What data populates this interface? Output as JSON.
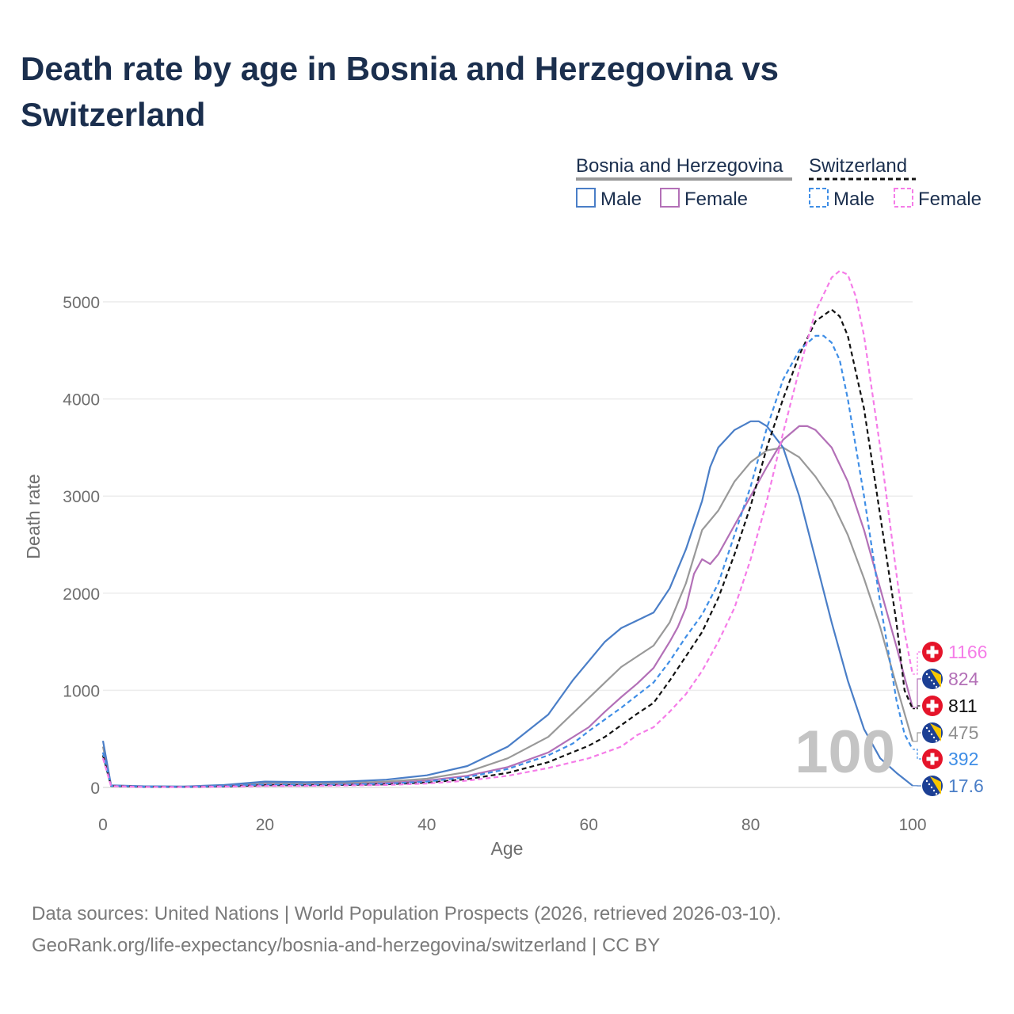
{
  "title": "Death rate by age in Bosnia and Herzegovina vs Switzerland",
  "source_line1": "Data sources: United Nations | World Population Prospects (2026, retrieved 2026-03-10).",
  "source_line2": "GeoRank.org/life-expectancy/bosnia-and-herzegovina/switzerland | CC BY",
  "legend": {
    "group1": "Bosnia and Herzegovina",
    "group2": "Switzerland",
    "male": "Male",
    "female": "Female"
  },
  "age_watermark": "100",
  "chart_data": {
    "type": "line",
    "title": "Death rate by age in Bosnia and Herzegovina vs Switzerland",
    "xlabel": "Age",
    "ylabel": "Death rate",
    "xlim": [
      0,
      100
    ],
    "ylim": [
      0,
      5000
    ],
    "xticks": [
      0,
      20,
      40,
      60,
      80,
      100
    ],
    "yticks": [
      0,
      1000,
      2000,
      3000,
      4000,
      5000
    ],
    "grid": true,
    "series": [
      {
        "name": "Bosnia and Herzegovina Total",
        "country": "Bosnia and Herzegovina",
        "sex": "Total",
        "color": "#999999",
        "dash": false,
        "end_value": "475",
        "points": [
          [
            0,
            420
          ],
          [
            1,
            20
          ],
          [
            5,
            10
          ],
          [
            10,
            8
          ],
          [
            15,
            20
          ],
          [
            20,
            45
          ],
          [
            25,
            40
          ],
          [
            30,
            45
          ],
          [
            35,
            60
          ],
          [
            40,
            90
          ],
          [
            45,
            160
          ],
          [
            50,
            300
          ],
          [
            55,
            520
          ],
          [
            60,
            920
          ],
          [
            62,
            1080
          ],
          [
            64,
            1240
          ],
          [
            66,
            1350
          ],
          [
            68,
            1460
          ],
          [
            70,
            1700
          ],
          [
            72,
            2100
          ],
          [
            74,
            2650
          ],
          [
            76,
            2850
          ],
          [
            78,
            3150
          ],
          [
            80,
            3350
          ],
          [
            82,
            3470
          ],
          [
            84,
            3500
          ],
          [
            86,
            3400
          ],
          [
            88,
            3200
          ],
          [
            90,
            2950
          ],
          [
            92,
            2600
          ],
          [
            94,
            2150
          ],
          [
            96,
            1650
          ],
          [
            98,
            1050
          ],
          [
            100,
            475
          ]
        ]
      },
      {
        "name": "Bosnia and Herzegovina Male",
        "country": "Bosnia and Herzegovina",
        "sex": "Male",
        "color": "#4a7ec7",
        "dash": false,
        "end_value": "17.6",
        "points": [
          [
            0,
            480
          ],
          [
            1,
            22
          ],
          [
            5,
            12
          ],
          [
            10,
            10
          ],
          [
            15,
            25
          ],
          [
            20,
            60
          ],
          [
            25,
            55
          ],
          [
            30,
            60
          ],
          [
            35,
            80
          ],
          [
            40,
            125
          ],
          [
            45,
            220
          ],
          [
            50,
            420
          ],
          [
            55,
            750
          ],
          [
            58,
            1100
          ],
          [
            60,
            1300
          ],
          [
            62,
            1500
          ],
          [
            64,
            1640
          ],
          [
            66,
            1720
          ],
          [
            68,
            1800
          ],
          [
            70,
            2050
          ],
          [
            72,
            2450
          ],
          [
            74,
            2950
          ],
          [
            75,
            3300
          ],
          [
            76,
            3500
          ],
          [
            78,
            3680
          ],
          [
            80,
            3770
          ],
          [
            81,
            3770
          ],
          [
            82,
            3720
          ],
          [
            84,
            3500
          ],
          [
            86,
            3000
          ],
          [
            88,
            2350
          ],
          [
            90,
            1700
          ],
          [
            92,
            1100
          ],
          [
            94,
            600
          ],
          [
            96,
            300
          ],
          [
            98,
            150
          ],
          [
            100,
            17.6
          ]
        ]
      },
      {
        "name": "Bosnia and Herzegovina Female",
        "country": "Bosnia and Herzegovina",
        "sex": "Female",
        "color": "#b370b7",
        "dash": false,
        "end_value": "824",
        "points": [
          [
            0,
            360
          ],
          [
            1,
            18
          ],
          [
            5,
            8
          ],
          [
            10,
            7
          ],
          [
            15,
            15
          ],
          [
            20,
            30
          ],
          [
            25,
            28
          ],
          [
            30,
            32
          ],
          [
            35,
            45
          ],
          [
            40,
            70
          ],
          [
            45,
            120
          ],
          [
            50,
            210
          ],
          [
            55,
            360
          ],
          [
            60,
            620
          ],
          [
            62,
            780
          ],
          [
            64,
            930
          ],
          [
            66,
            1070
          ],
          [
            68,
            1230
          ],
          [
            70,
            1500
          ],
          [
            71,
            1650
          ],
          [
            72,
            1850
          ],
          [
            73,
            2200
          ],
          [
            74,
            2350
          ],
          [
            75,
            2300
          ],
          [
            76,
            2400
          ],
          [
            78,
            2700
          ],
          [
            80,
            3000
          ],
          [
            82,
            3300
          ],
          [
            84,
            3580
          ],
          [
            86,
            3720
          ],
          [
            87,
            3720
          ],
          [
            88,
            3680
          ],
          [
            90,
            3500
          ],
          [
            92,
            3150
          ],
          [
            94,
            2650
          ],
          [
            96,
            2050
          ],
          [
            98,
            1450
          ],
          [
            100,
            824
          ]
        ]
      },
      {
        "name": "Switzerland Total",
        "country": "Switzerland",
        "sex": "Total",
        "color": "#111111",
        "dash": true,
        "end_value": "811",
        "points": [
          [
            0,
            330
          ],
          [
            1,
            15
          ],
          [
            5,
            6
          ],
          [
            10,
            5
          ],
          [
            15,
            10
          ],
          [
            20,
            22
          ],
          [
            25,
            22
          ],
          [
            30,
            25
          ],
          [
            35,
            32
          ],
          [
            40,
            50
          ],
          [
            45,
            85
          ],
          [
            50,
            150
          ],
          [
            55,
            260
          ],
          [
            60,
            430
          ],
          [
            62,
            520
          ],
          [
            64,
            640
          ],
          [
            66,
            760
          ],
          [
            68,
            870
          ],
          [
            70,
            1100
          ],
          [
            72,
            1350
          ],
          [
            74,
            1600
          ],
          [
            76,
            1950
          ],
          [
            78,
            2400
          ],
          [
            80,
            2900
          ],
          [
            82,
            3500
          ],
          [
            84,
            4000
          ],
          [
            86,
            4450
          ],
          [
            88,
            4800
          ],
          [
            90,
            4920
          ],
          [
            91,
            4850
          ],
          [
            92,
            4650
          ],
          [
            94,
            3900
          ],
          [
            96,
            2800
          ],
          [
            98,
            1700
          ],
          [
            99,
            1000
          ],
          [
            100,
            811
          ]
        ]
      },
      {
        "name": "Switzerland Male",
        "country": "Switzerland",
        "sex": "Male",
        "color": "#3f8ee6",
        "dash": true,
        "end_value": "392",
        "points": [
          [
            0,
            360
          ],
          [
            1,
            17
          ],
          [
            5,
            7
          ],
          [
            10,
            6
          ],
          [
            15,
            14
          ],
          [
            20,
            30
          ],
          [
            25,
            28
          ],
          [
            30,
            30
          ],
          [
            35,
            38
          ],
          [
            40,
            60
          ],
          [
            45,
            105
          ],
          [
            50,
            190
          ],
          [
            55,
            330
          ],
          [
            58,
            450
          ],
          [
            60,
            580
          ],
          [
            62,
            700
          ],
          [
            64,
            820
          ],
          [
            66,
            950
          ],
          [
            68,
            1080
          ],
          [
            70,
            1300
          ],
          [
            72,
            1550
          ],
          [
            74,
            1780
          ],
          [
            76,
            2100
          ],
          [
            78,
            2600
          ],
          [
            80,
            3100
          ],
          [
            82,
            3700
          ],
          [
            84,
            4200
          ],
          [
            86,
            4500
          ],
          [
            88,
            4650
          ],
          [
            89,
            4650
          ],
          [
            90,
            4580
          ],
          [
            91,
            4400
          ],
          [
            92,
            4000
          ],
          [
            94,
            3000
          ],
          [
            96,
            1900
          ],
          [
            98,
            900
          ],
          [
            99,
            550
          ],
          [
            100,
            392
          ]
        ]
      },
      {
        "name": "Switzerland Female",
        "country": "Switzerland",
        "sex": "Female",
        "color": "#f57ce8",
        "dash": true,
        "end_value": "1166",
        "points": [
          [
            0,
            300
          ],
          [
            1,
            13
          ],
          [
            5,
            5
          ],
          [
            10,
            4
          ],
          [
            15,
            8
          ],
          [
            20,
            15
          ],
          [
            25,
            16
          ],
          [
            30,
            20
          ],
          [
            35,
            25
          ],
          [
            40,
            40
          ],
          [
            45,
            70
          ],
          [
            50,
            120
          ],
          [
            55,
            200
          ],
          [
            58,
            260
          ],
          [
            60,
            300
          ],
          [
            62,
            360
          ],
          [
            64,
            420
          ],
          [
            66,
            540
          ],
          [
            68,
            620
          ],
          [
            70,
            780
          ],
          [
            72,
            960
          ],
          [
            74,
            1200
          ],
          [
            76,
            1500
          ],
          [
            78,
            1850
          ],
          [
            80,
            2350
          ],
          [
            82,
            2950
          ],
          [
            84,
            3650
          ],
          [
            86,
            4300
          ],
          [
            88,
            4900
          ],
          [
            90,
            5250
          ],
          [
            91,
            5320
          ],
          [
            92,
            5280
          ],
          [
            93,
            5050
          ],
          [
            94,
            4650
          ],
          [
            96,
            3500
          ],
          [
            98,
            2200
          ],
          [
            99,
            1600
          ],
          [
            100,
            1166
          ]
        ]
      }
    ]
  }
}
